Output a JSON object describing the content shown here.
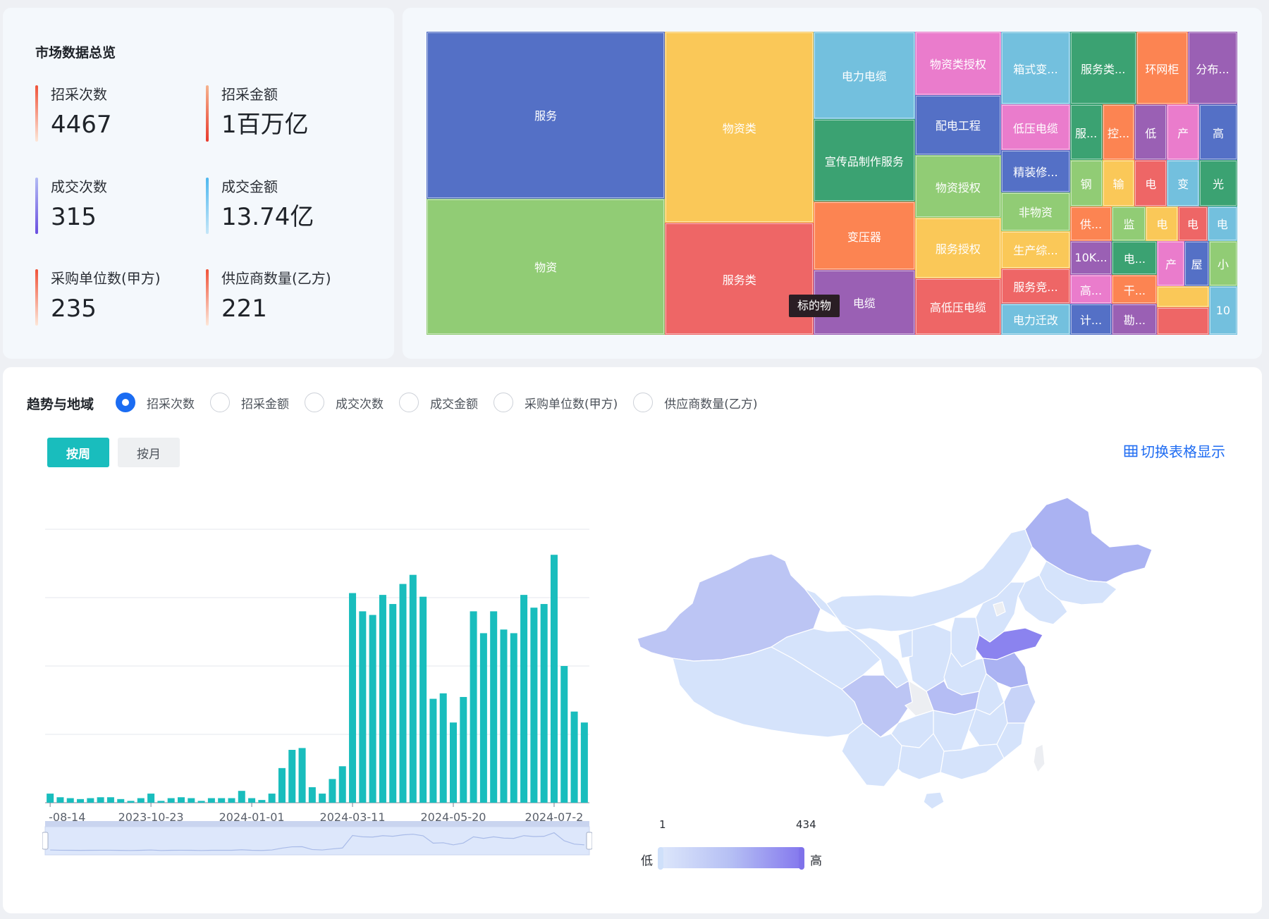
{
  "stats": {
    "title": "市场数据总览",
    "items": [
      {
        "label": "招采次数",
        "value": "4467"
      },
      {
        "label": "招采金额",
        "value": "1百万亿"
      },
      {
        "label": "成交次数",
        "value": "315"
      },
      {
        "label": "成交金额",
        "value": "13.74亿"
      },
      {
        "label": "采购单位数(甲方)",
        "value": "235"
      },
      {
        "label": "供应商数量(乙方)",
        "value": "221"
      }
    ]
  },
  "treemap": {
    "tooltip": "标的物",
    "cells": [
      {
        "label": "服务",
        "color": "#5470c6"
      },
      {
        "label": "物资",
        "color": "#91cc75"
      },
      {
        "label": "物资类",
        "color": "#fac858"
      },
      {
        "label": "服务类",
        "color": "#ee6666"
      },
      {
        "label": "电力电缆",
        "color": "#73c0de"
      },
      {
        "label": "宣传品制作服务",
        "color": "#3ba272"
      },
      {
        "label": "变压器",
        "color": "#fc8452"
      },
      {
        "label": "电缆",
        "color": "#9a60b4"
      },
      {
        "label": "物资类授权",
        "color": "#ea7ccc"
      },
      {
        "label": "配电工程",
        "color": "#5470c6"
      },
      {
        "label": "物资授权",
        "color": "#91cc75"
      },
      {
        "label": "服务授权",
        "color": "#fac858"
      },
      {
        "label": "高低压电缆",
        "color": "#ee6666"
      },
      {
        "label": "箱式变...",
        "color": "#73c0de"
      },
      {
        "label": "低压电缆",
        "color": "#ea7ccc"
      },
      {
        "label": "精装修...",
        "color": "#5470c6"
      },
      {
        "label": "非物资",
        "color": "#91cc75"
      },
      {
        "label": "生产综...",
        "color": "#fac858"
      },
      {
        "label": "服务竞...",
        "color": "#ee6666"
      },
      {
        "label": "电力迁改",
        "color": "#73c0de"
      },
      {
        "label": "服务类...",
        "color": "#3ba272"
      },
      {
        "label": "环网柜",
        "color": "#fc8452"
      },
      {
        "label": "分布...",
        "color": "#9a60b4"
      },
      {
        "label": "服...",
        "color": "#3ba272"
      },
      {
        "label": "控...",
        "color": "#fc8452"
      },
      {
        "label": "低",
        "color": "#9a60b4"
      },
      {
        "label": "产",
        "color": "#ea7ccc"
      },
      {
        "label": "高",
        "color": "#5470c6"
      },
      {
        "label": "钢",
        "color": "#91cc75"
      },
      {
        "label": "输",
        "color": "#fac858"
      },
      {
        "label": "电",
        "color": "#ee6666"
      },
      {
        "label": "变",
        "color": "#73c0de"
      },
      {
        "label": "光",
        "color": "#3ba272"
      },
      {
        "label": "供...",
        "color": "#fc8452"
      },
      {
        "label": "监",
        "color": "#91cc75"
      },
      {
        "label": "电",
        "color": "#fac858"
      },
      {
        "label": "电",
        "color": "#ee6666"
      },
      {
        "label": "电",
        "color": "#73c0de"
      },
      {
        "label": "10K...",
        "color": "#9a60b4"
      },
      {
        "label": "电...",
        "color": "#3ba272"
      },
      {
        "label": "产",
        "color": "#ea7ccc"
      },
      {
        "label": "屋",
        "color": "#5470c6"
      },
      {
        "label": "小",
        "color": "#91cc75"
      },
      {
        "label": "高...",
        "color": "#ea7ccc"
      },
      {
        "label": "干...",
        "color": "#fc8452"
      },
      {
        "label": "",
        "color": "#fac858"
      },
      {
        "label": "10",
        "color": "#73c0de"
      },
      {
        "label": "计...",
        "color": "#5470c6"
      },
      {
        "label": "勘...",
        "color": "#9a60b4"
      },
      {
        "label": "",
        "color": "#ee6666"
      }
    ]
  },
  "trend": {
    "title": "趋势与地域",
    "metrics": [
      "招采次数",
      "招采金额",
      "成交次数",
      "成交金额",
      "采购单位数(甲方)",
      "供应商数量(乙方)"
    ],
    "selected_metric": "招采次数",
    "period_buttons": {
      "week": "按周",
      "month": "按月"
    },
    "switch_table": "切换表格显示",
    "icon": "table-icon"
  },
  "chart_data": [
    {
      "type": "bar",
      "series_color": "#19bdbd",
      "x_tick_labels": [
        "-08-14",
        "2023-10-23",
        "2024-01-01",
        "2024-03-11",
        "2024-05-20",
        "2024-07-2"
      ],
      "values": [
        10,
        6,
        5,
        4,
        5,
        6,
        6,
        4,
        2,
        5,
        10,
        2,
        5,
        6,
        5,
        2,
        5,
        5,
        5,
        13,
        5,
        3,
        10,
        38,
        58,
        60,
        17,
        10,
        26,
        40,
        230,
        210,
        206,
        228,
        218,
        240,
        250,
        226,
        114,
        120,
        88,
        116,
        210,
        186,
        210,
        190,
        186,
        228,
        214,
        218,
        272,
        150,
        100,
        88
      ],
      "ylim": [
        0,
        300
      ]
    },
    {
      "type": "heatmap",
      "visual_map": {
        "min_label": "1",
        "max_label": "434",
        "low_label": "低",
        "high_label": "高",
        "min": 1,
        "max": 434
      }
    }
  ]
}
